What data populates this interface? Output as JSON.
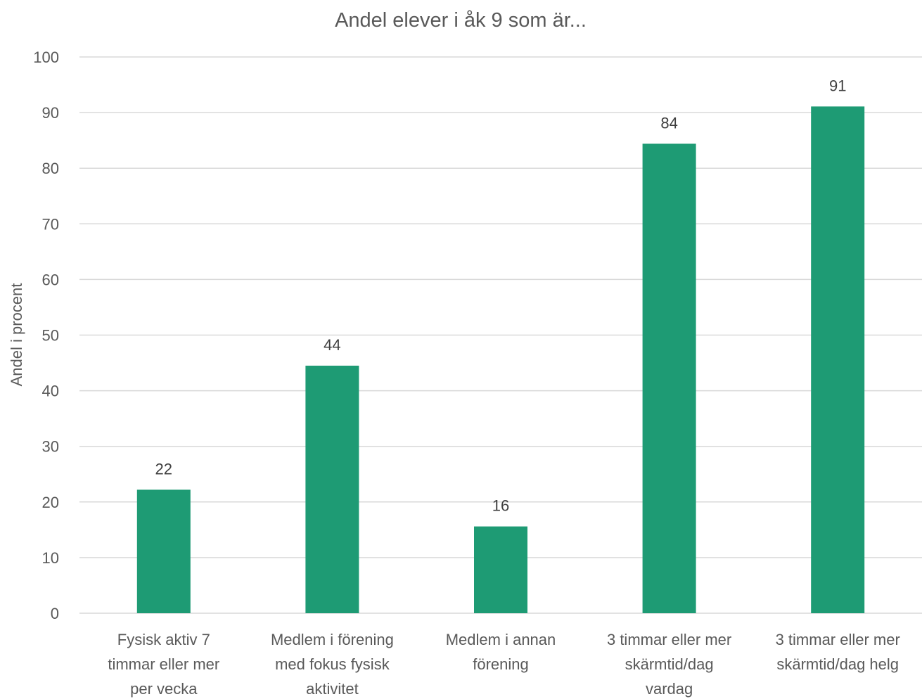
{
  "chart_data": {
    "type": "bar",
    "title": "Andel elever i åk 9 som är...",
    "xlabel": "",
    "ylabel": "Andel i procent",
    "ylim": [
      0,
      100
    ],
    "yticks": [
      0,
      10,
      20,
      30,
      40,
      50,
      60,
      70,
      80,
      90,
      100
    ],
    "grid": true,
    "legend": "none",
    "categories": [
      [
        "Fysisk aktiv 7",
        "timmar eller mer",
        "per vecka"
      ],
      [
        "Medlem i förening",
        "med fokus fysisk",
        "aktivitet"
      ],
      [
        "Medlem i annan",
        "förening"
      ],
      [
        "3 timmar eller mer",
        "skärmtid/dag",
        "vardag"
      ],
      [
        "3 timmar eller mer",
        "skärmtid/dag helg"
      ]
    ],
    "values": [
      22.2,
      44.5,
      15.6,
      84.4,
      91.1
    ],
    "data_labels": [
      "22",
      "44",
      "16",
      "84",
      "91"
    ],
    "bar_color": "#1e9b74"
  }
}
